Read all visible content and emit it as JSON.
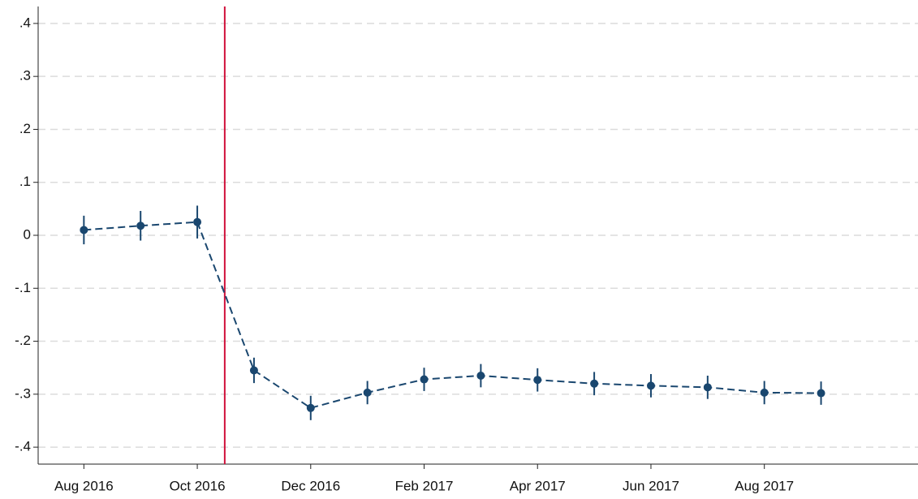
{
  "chart_data": {
    "type": "line",
    "x": [
      "2016-08",
      "2016-09",
      "2016-10",
      "2016-11",
      "2016-12",
      "2017-01",
      "2017-02",
      "2017-03",
      "2017-04",
      "2017-05",
      "2017-06",
      "2017-07",
      "2017-08",
      "2017-09"
    ],
    "series": [
      {
        "color": "#1a476f",
        "values": [
          0.01,
          0.018,
          0.025,
          -0.255,
          -0.326,
          -0.297,
          -0.272,
          -0.265,
          -0.273,
          -0.28,
          -0.284,
          -0.287,
          -0.297,
          -0.298
        ],
        "errors": [
          0.027,
          0.028,
          0.031,
          0.024,
          0.023,
          0.022,
          0.022,
          0.022,
          0.022,
          0.022,
          0.022,
          0.022,
          0.022,
          0.022
        ]
      }
    ],
    "xlim": [
      "2016-07-07",
      "2017-10-23"
    ],
    "xticks": [
      {
        "value": "2016-08",
        "label": "Aug 2016"
      },
      {
        "value": "2016-10",
        "label": "Oct 2016"
      },
      {
        "value": "2016-12",
        "label": "Dec 2016"
      },
      {
        "value": "2017-02",
        "label": "Feb 2017"
      },
      {
        "value": "2017-04",
        "label": "Apr 2017"
      },
      {
        "value": "2017-06",
        "label": "Jun 2017"
      },
      {
        "value": "2017-08",
        "label": "Aug 2017"
      }
    ],
    "ylim": [
      -0.432,
      0.432
    ],
    "yticks": [
      {
        "value": -0.4,
        "label": "-.4"
      },
      {
        "value": -0.3,
        "label": "-.3"
      },
      {
        "value": -0.2,
        "label": "-.2"
      },
      {
        "value": -0.1,
        "label": "-.1"
      },
      0,
      {
        "value": 0.1,
        "label": ".1"
      },
      {
        "value": 0.2,
        "label": ".2"
      },
      {
        "value": 0.3,
        "label": ".3"
      },
      {
        "value": 0.4,
        "label": ".4"
      }
    ],
    "grid": true,
    "vline": {
      "x": "2016-10-16",
      "color": "#d0103a"
    }
  }
}
